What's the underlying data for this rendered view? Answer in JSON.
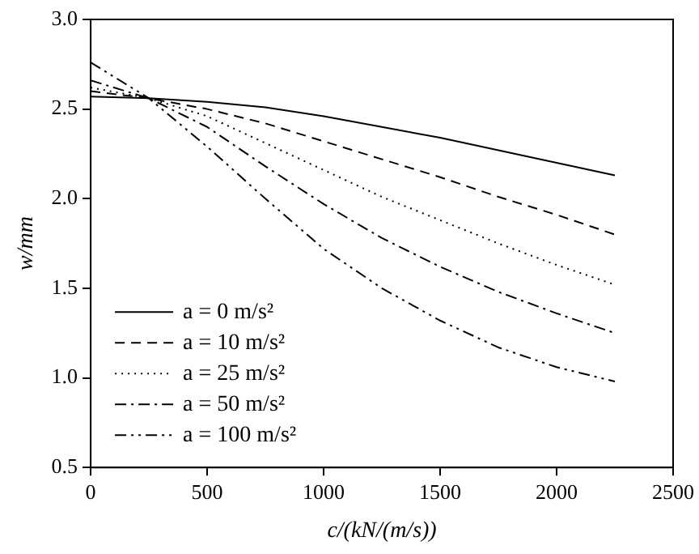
{
  "chart_data": {
    "type": "line",
    "xlabel": "c/(kN/(m/s))",
    "ylabel": "w/mm",
    "x": [
      0,
      250,
      500,
      750,
      1000,
      1250,
      1500,
      1750,
      2000,
      2250
    ],
    "series": [
      {
        "name": "a = 0 m/s²",
        "color": "#000000",
        "line_style": "solid",
        "values": [
          2.57,
          2.56,
          2.54,
          2.51,
          2.46,
          2.4,
          2.34,
          2.27,
          2.2,
          2.13
        ]
      },
      {
        "name": "a = 10 m/s²",
        "color": "#000000",
        "line_style": "dashed",
        "values": [
          2.6,
          2.56,
          2.5,
          2.42,
          2.32,
          2.22,
          2.12,
          2.01,
          1.91,
          1.8
        ]
      },
      {
        "name": "a = 25 m/s²",
        "color": "#000000",
        "line_style": "dotted",
        "values": [
          2.62,
          2.56,
          2.46,
          2.31,
          2.16,
          2.01,
          1.88,
          1.75,
          1.63,
          1.52
        ]
      },
      {
        "name": "a = 50 m/s²",
        "color": "#000000",
        "line_style": "dashdot",
        "values": [
          2.66,
          2.56,
          2.4,
          2.18,
          1.97,
          1.78,
          1.62,
          1.48,
          1.36,
          1.25
        ]
      },
      {
        "name": "a = 100 m/s²",
        "color": "#000000",
        "line_style": "dashdotdot",
        "values": [
          2.76,
          2.56,
          2.29,
          2.0,
          1.72,
          1.5,
          1.32,
          1.17,
          1.06,
          0.98
        ]
      }
    ],
    "xlim": [
      0,
      2500
    ],
    "xticks": [
      0,
      500,
      1000,
      1500,
      2000,
      2500
    ],
    "ylim": [
      0.5,
      3.0
    ],
    "yticks": [
      {
        "value": 0.5,
        "label": "0.5"
      },
      {
        "value": 1.0,
        "label": "1.0"
      },
      {
        "value": 1.5,
        "label": "1.5"
      },
      {
        "value": 2.0,
        "label": "2.0"
      },
      {
        "value": 2.5,
        "label": "2.5"
      },
      {
        "value": 3.0,
        "label": "3.0"
      }
    ],
    "grid": false,
    "legend": "bottom left",
    "marker": "none"
  }
}
